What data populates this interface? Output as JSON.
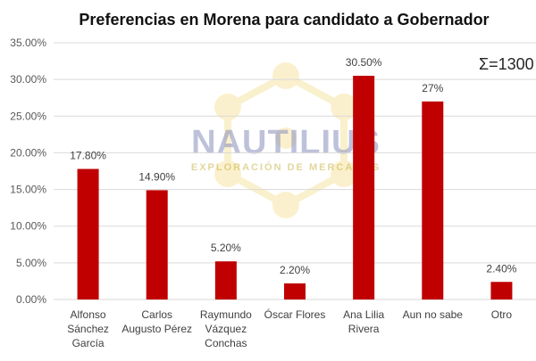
{
  "chart_data": {
    "type": "bar",
    "title": "Preferencias en Morena para candidato a Gobernador",
    "categories": [
      [
        "Alfonso",
        "Sánchez",
        "García"
      ],
      [
        "Carlos",
        "Augusto Pérez"
      ],
      [
        "Raymundo",
        "Vázquez",
        "Conchas"
      ],
      [
        "Óscar Flores"
      ],
      [
        "Ana Lilia",
        "Rivera"
      ],
      [
        "Aun no sabe"
      ],
      [
        "Otro"
      ]
    ],
    "values": [
      17.8,
      14.9,
      5.2,
      2.2,
      30.5,
      27.0,
      2.4
    ],
    "data_labels": [
      "17.80%",
      "14.90%",
      "5.20%",
      "2.20%",
      "30.50%",
      "27%",
      "2.40%"
    ],
    "ylim": [
      0,
      35
    ],
    "yticks": [
      0,
      5,
      10,
      15,
      20,
      25,
      30,
      35
    ],
    "ytick_labels": [
      "0.00%",
      "5.00%",
      "10.00%",
      "15.00%",
      "20.00%",
      "25.00%",
      "30.00%",
      "35.00%"
    ],
    "grid": true,
    "xlabel": "",
    "ylabel": "",
    "annotation": "Σ=1300",
    "bar_color": "#c00000",
    "grid_color": "#d9d9d9"
  },
  "watermark": {
    "name": "NAUTILIUS",
    "subtitle": "EXPLORACIÓN DE MERCADOS"
  }
}
